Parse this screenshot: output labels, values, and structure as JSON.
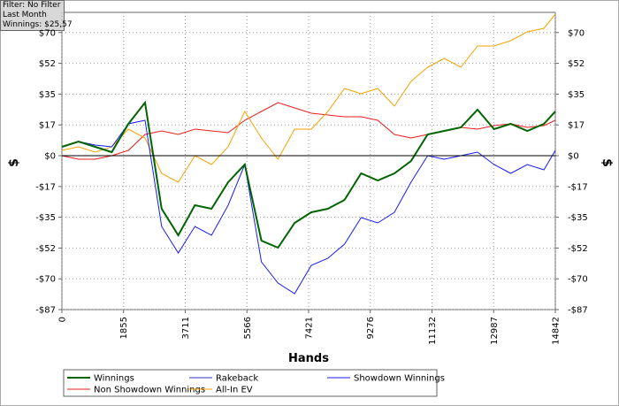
{
  "chart_data": {
    "type": "line",
    "filter_info": [
      "Filter: No Filter",
      "Last Month",
      "Winnings: $25,57"
    ],
    "xlabel": "Hands",
    "ylabel": "$",
    "y2label": "$",
    "x": [
      0,
      500,
      1000,
      1500,
      2000,
      2500,
      3000,
      3500,
      4000,
      4500,
      5000,
      5500,
      6000,
      6500,
      7000,
      7500,
      8000,
      8500,
      9000,
      9500,
      10000,
      10500,
      11000,
      11500,
      12000,
      12500,
      13000,
      13500,
      14000,
      14500,
      14842
    ],
    "xlim": [
      0,
      14842
    ],
    "xticks": [
      0,
      1855,
      3711,
      5566,
      7421,
      9276,
      11132,
      12987,
      14842
    ],
    "ylim": [
      -87,
      81
    ],
    "yticks": [
      {
        "value": -87,
        "label": "-$87"
      },
      {
        "value": -69.6,
        "label": "-$70"
      },
      {
        "value": -52.2,
        "label": "-$52"
      },
      {
        "value": -34.8,
        "label": "-$35"
      },
      {
        "value": -17.4,
        "label": "-$17"
      },
      {
        "value": 0,
        "label": "$0"
      },
      {
        "value": 17.4,
        "label": "$17"
      },
      {
        "value": 34.8,
        "label": "$35"
      },
      {
        "value": 52.2,
        "label": "$52"
      },
      {
        "value": 69.6,
        "label": "$70"
      }
    ],
    "y2lim": [
      -87,
      81
    ],
    "y2ticks": [
      {
        "value": -87,
        "label": "-$87"
      },
      {
        "value": -69.6,
        "label": "-$70"
      },
      {
        "value": -52.2,
        "label": "-$52"
      },
      {
        "value": -34.8,
        "label": "-$35"
      },
      {
        "value": -17.4,
        "label": "-$17"
      },
      {
        "value": 0,
        "label": "$0"
      },
      {
        "value": 17.4,
        "label": "$17"
      },
      {
        "value": 34.8,
        "label": "$35"
      },
      {
        "value": 52.2,
        "label": "$52"
      },
      {
        "value": 69.6,
        "label": "$70"
      }
    ],
    "grid": true,
    "series": [
      {
        "name": "Winnings",
        "color": "#006400",
        "values": [
          5,
          8,
          5,
          2,
          18,
          30,
          -30,
          -45,
          -28,
          -30,
          -15,
          -5,
          -48,
          -52,
          -38,
          -32,
          -30,
          -25,
          -10,
          -14,
          -10,
          -3,
          12,
          14,
          16,
          26,
          15,
          18,
          14,
          18,
          25
        ]
      },
      {
        "name": "Rakeback",
        "color": "#3333cc",
        "values": [
          0,
          0,
          0,
          0,
          0,
          0,
          0,
          0,
          0,
          0,
          0,
          0,
          0,
          0,
          0,
          0,
          0,
          0,
          0,
          0,
          0,
          0,
          0,
          0,
          0,
          0,
          0,
          0,
          0,
          0,
          0
        ]
      },
      {
        "name": "Showdown Winnings",
        "color": "#1a1aff",
        "values": [
          5,
          8,
          6,
          5,
          18,
          20,
          -40,
          -55,
          -40,
          -45,
          -28,
          -5,
          -60,
          -72,
          -78,
          -62,
          -58,
          -50,
          -35,
          -38,
          -32,
          -15,
          0,
          -2,
          0,
          2,
          -5,
          -10,
          -5,
          -8,
          3
        ]
      },
      {
        "name": "Non Showdown Winnings",
        "color": "#ee1c1c",
        "values": [
          0,
          -2,
          -2,
          0,
          3,
          12,
          14,
          12,
          15,
          14,
          13,
          20,
          25,
          30,
          27,
          24,
          23,
          22,
          22,
          20,
          12,
          10,
          12,
          14,
          16,
          15,
          17,
          18,
          16,
          17,
          20
        ]
      },
      {
        "name": "All-In EV",
        "color": "#f5a300",
        "values": [
          3,
          5,
          2,
          5,
          15,
          10,
          -10,
          -15,
          0,
          -5,
          5,
          25,
          10,
          -2,
          15,
          15,
          25,
          38,
          35,
          38,
          28,
          42,
          50,
          55,
          50,
          62,
          62,
          65,
          70,
          72,
          80
        ]
      }
    ]
  }
}
